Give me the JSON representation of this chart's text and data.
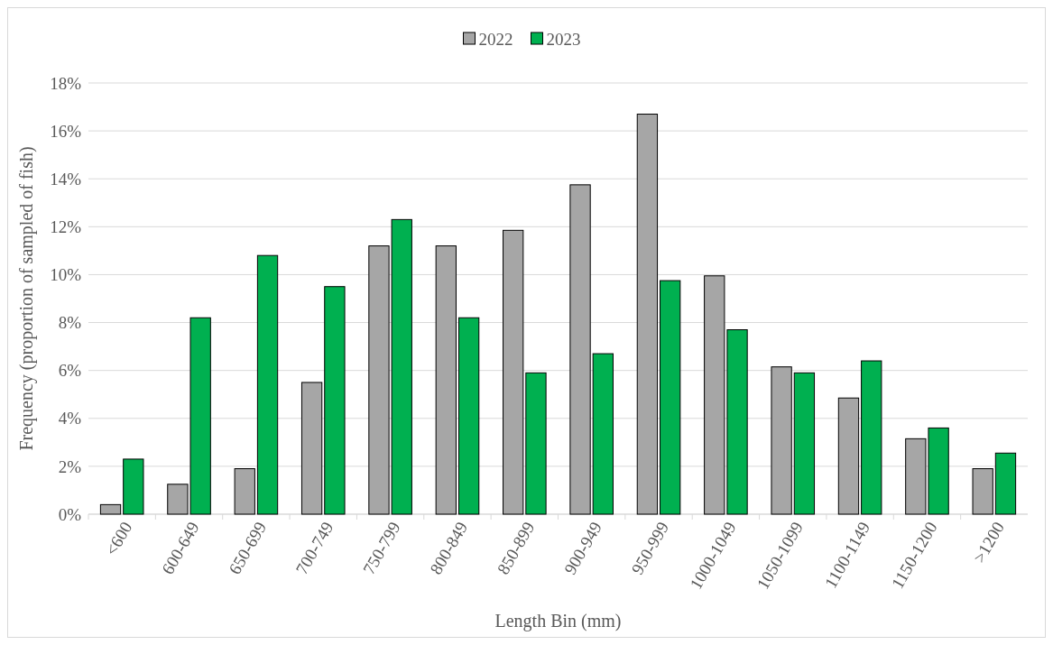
{
  "chart_data": {
    "type": "bar",
    "xlabel": "Length Bin (mm)",
    "ylabel": "Frequency (proportion of sampled of fish)",
    "categories": [
      "<600",
      "600-649",
      "650-699",
      "700-749",
      "750-799",
      "800-849",
      "850-899",
      "900-949",
      "950-999",
      "1000-1049",
      "1050-1099",
      "1100-1149",
      "1150-1200",
      ">1200"
    ],
    "series": [
      {
        "name": "2022",
        "color": "#a6a6a6",
        "values": [
          0.4,
          1.25,
          1.9,
          5.5,
          11.2,
          11.2,
          11.85,
          13.75,
          16.7,
          9.95,
          6.15,
          4.85,
          3.15,
          1.9
        ]
      },
      {
        "name": "2023",
        "color": "#00b050",
        "values": [
          2.3,
          8.2,
          10.8,
          9.5,
          12.3,
          8.2,
          5.9,
          6.7,
          9.75,
          7.7,
          5.9,
          6.4,
          3.6,
          2.55
        ]
      }
    ],
    "ylim": [
      0,
      18
    ],
    "yticks": [
      {
        "value": 0,
        "label": "0%"
      },
      {
        "value": 2,
        "label": "2%"
      },
      {
        "value": 4,
        "label": "4%"
      },
      {
        "value": 6,
        "label": "6%"
      },
      {
        "value": 8,
        "label": "8%"
      },
      {
        "value": 10,
        "label": "10%"
      },
      {
        "value": 12,
        "label": "12%"
      },
      {
        "value": 14,
        "label": "14%"
      },
      {
        "value": 16,
        "label": "16%"
      },
      {
        "value": 18,
        "label": "18%"
      }
    ],
    "grid": "y",
    "legend": "top"
  }
}
